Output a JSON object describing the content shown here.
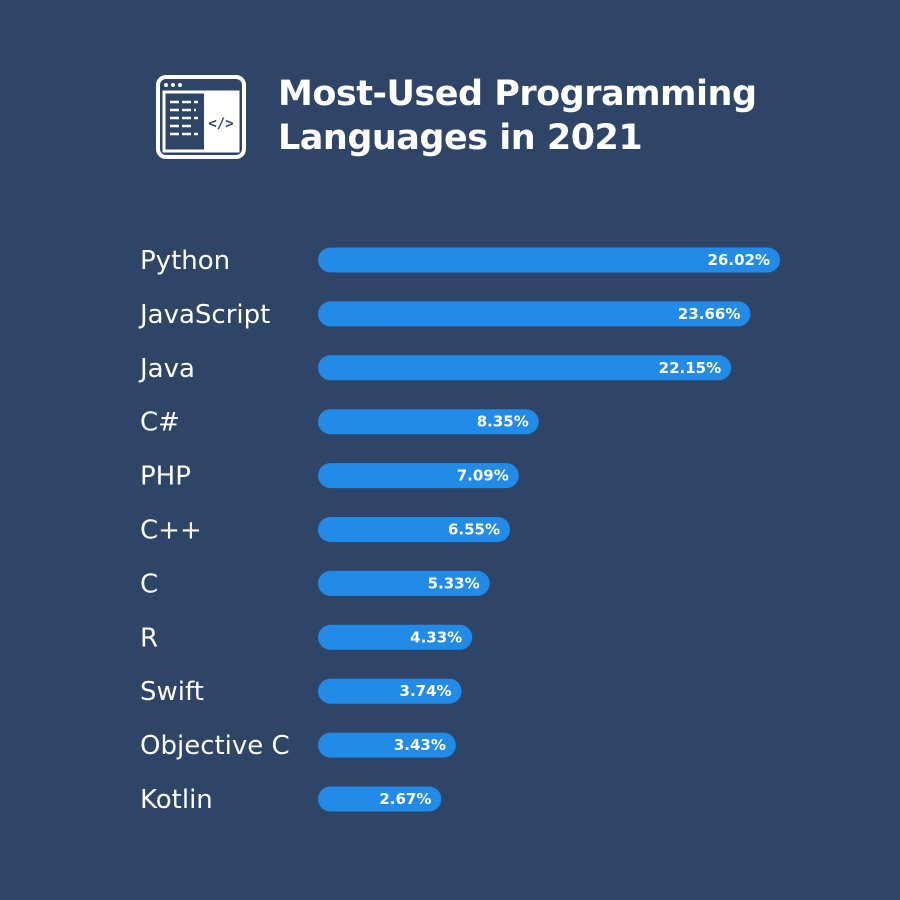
{
  "colors": {
    "background": "#2e4567",
    "bar": "#228be8",
    "text": "#ffffff"
  },
  "icon": "code-window-icon",
  "chart_data": {
    "type": "bar",
    "orientation": "horizontal",
    "title": "Most-Used Programming Languages in 2021",
    "categories": [
      "Python",
      "JavaScript",
      "Java",
      "C#",
      "PHP",
      "C++",
      "C",
      "R",
      "Swift",
      "Objective C",
      "Kotlin"
    ],
    "values": [
      26.02,
      23.66,
      22.15,
      8.35,
      7.09,
      6.55,
      5.33,
      4.33,
      3.74,
      3.43,
      2.67
    ],
    "data_labels": [
      "26.02%",
      "23.66%",
      "22.15%",
      "8.35%",
      "7.09%",
      "6.55%",
      "5.33%",
      "4.33%",
      "3.74%",
      "3.43%",
      "2.67%"
    ],
    "unit": "%",
    "grid": false,
    "legend": "none"
  }
}
